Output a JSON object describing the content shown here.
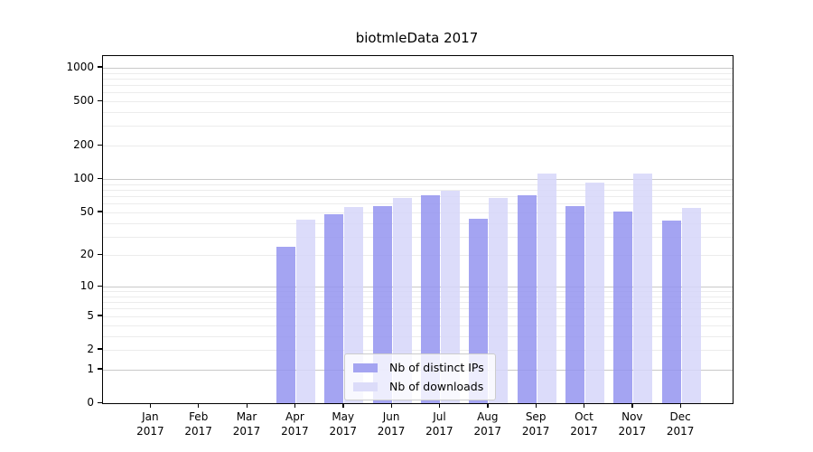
{
  "figure": {
    "title": "biotmleData 2017"
  },
  "chart_data": {
    "type": "bar",
    "title": "biotmleData 2017",
    "scale": "log1p",
    "grid": "on",
    "categories": [
      "Jan",
      "Feb",
      "Mar",
      "Apr",
      "May",
      "Jun",
      "Jul",
      "Aug",
      "Sep",
      "Oct",
      "Nov",
      "Dec"
    ],
    "year_label": "2017",
    "series": [
      {
        "name": "Nb of distinct IPs",
        "color": "#a4a4f1",
        "fill": "rgba(148,148,240,0.85)",
        "values": [
          0,
          0,
          0,
          24,
          48,
          57,
          71,
          44,
          71,
          57,
          51,
          42
        ]
      },
      {
        "name": "Nb of downloads",
        "color": "#dcdcf9",
        "fill": "rgba(214,214,249,0.85)",
        "values": [
          0,
          0,
          0,
          43,
          56,
          68,
          79,
          67,
          113,
          93,
          113,
          55
        ]
      }
    ],
    "y_ticks": [
      1000,
      500,
      200,
      100,
      50,
      20,
      10,
      5,
      2,
      1,
      0
    ],
    "ylim": [
      0,
      1273
    ],
    "gridlines": {
      "major_values": [
        1,
        10,
        100,
        1000
      ],
      "minor_values": [
        2,
        3,
        4,
        5,
        6,
        7,
        8,
        9,
        20,
        30,
        40,
        50,
        60,
        70,
        80,
        90,
        200,
        300,
        400,
        500,
        600,
        700,
        800,
        900
      ],
      "major_color": "#c9c9c9",
      "minor_color": "#ececec"
    },
    "legend": {
      "position": "lower-center"
    }
  }
}
